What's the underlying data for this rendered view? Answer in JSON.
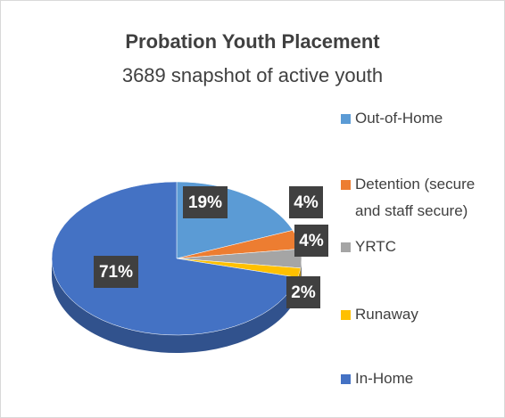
{
  "chart_data": {
    "type": "pie",
    "title": "Probation Youth Placement",
    "subtitle": "3689 snapshot of active youth",
    "categories": [
      "Out-of-Home",
      "Detention (secure and staff secure)",
      "YRTC",
      "Runaway",
      "In-Home"
    ],
    "values": [
      19,
      4,
      4,
      2,
      71
    ],
    "value_labels": [
      "19%",
      "4%",
      "4%",
      "2%",
      "71%"
    ],
    "colors": [
      "#5b9bd5",
      "#ed7d31",
      "#a5a5a5",
      "#ffc000",
      "#4472c4"
    ],
    "legend": "right"
  }
}
